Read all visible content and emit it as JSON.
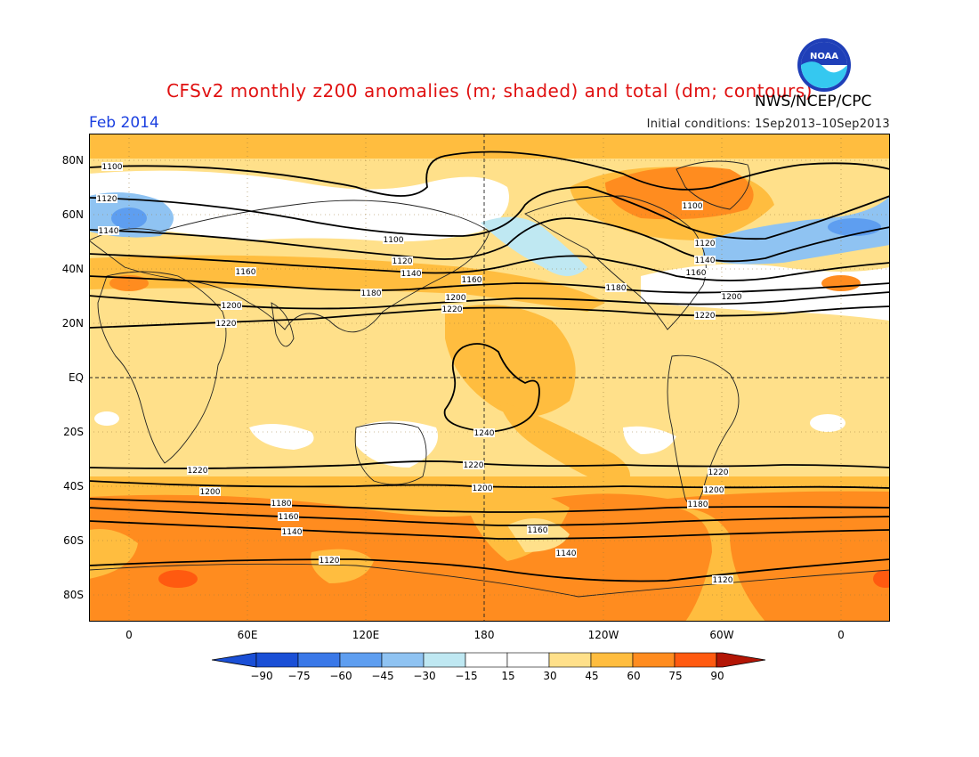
{
  "header": {
    "title": "CFSv2 monthly z200 anomalies (m; shaded) and total (dm; contours)",
    "agency": "NWS/NCEP/CPC",
    "date": "Feb 2014",
    "initial_conditions": "Initial conditions: 1Sep2013–10Sep2013",
    "logo_text": "NOAA"
  },
  "axes": {
    "lat_labels": [
      "80N",
      "60N",
      "40N",
      "20N",
      "EQ",
      "20S",
      "40S",
      "60S",
      "80S"
    ],
    "lon_labels": [
      "0",
      "60E",
      "120E",
      "180",
      "120W",
      "60W",
      "0"
    ]
  },
  "colorbar": {
    "labels": [
      "−90",
      "−75",
      "−60",
      "−45",
      "−30",
      "−15",
      "15",
      "30",
      "45",
      "60",
      "75",
      "90"
    ],
    "colors": [
      "#1a4fd6",
      "#3a78e8",
      "#5e9ef0",
      "#8fc3f2",
      "#bfe8f2",
      "#ffffff",
      "#ffffff",
      "#ffe08a",
      "#ffbd3f",
      "#ff8c1f",
      "#ff5a10",
      "#e02a0a",
      "#b31505"
    ]
  },
  "contour_labels": [
    "1100",
    "1120",
    "1140",
    "1160",
    "1180",
    "1200",
    "1220",
    "1240"
  ],
  "colors": {
    "title": "#e01010",
    "date": "#1a3fe0",
    "ocean_base": "#ffe08a"
  }
}
